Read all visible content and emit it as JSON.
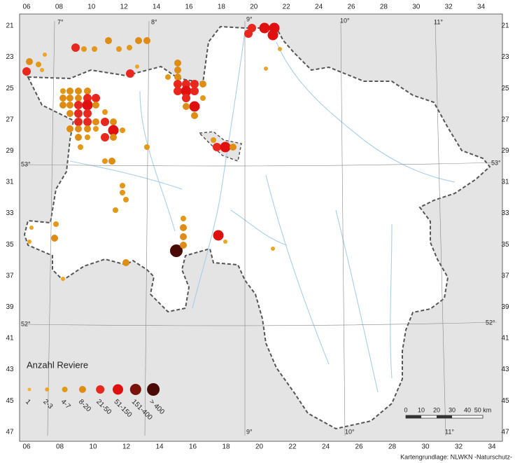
{
  "top_labels": [
    "06",
    "08",
    "10",
    "12",
    "14",
    "16",
    "18",
    "20",
    "22",
    "24",
    "26",
    "28",
    "30",
    "32",
    "34"
  ],
  "bottom_labels": [
    "06",
    "08",
    "10",
    "12",
    "14",
    "16",
    "18",
    "20",
    "22",
    "24",
    "26",
    "28",
    "30",
    "32",
    "34"
  ],
  "left_labels": [
    "21",
    "23",
    "25",
    "27",
    "29",
    "31",
    "33",
    "35",
    "37",
    "39",
    "41",
    "43",
    "45",
    "47"
  ],
  "right_labels": [
    "21",
    "23",
    "25",
    "27",
    "29",
    "31",
    "33",
    "35",
    "37",
    "39",
    "41",
    "43",
    "45",
    "47"
  ],
  "graticule": {
    "top": [
      "7°",
      "8°",
      "9°",
      "10°",
      "11°"
    ],
    "bottom": [
      "9°",
      "10°",
      "11°"
    ],
    "left": [
      "53°",
      "52°"
    ],
    "right": [
      "53°",
      "52°"
    ]
  },
  "legend": {
    "title": "Anzahl Reviere",
    "classes": [
      "1",
      "2-3",
      "4-7",
      "8-20",
      "21-50",
      "51-150",
      "151-400",
      "> 400"
    ]
  },
  "scale": {
    "labels": [
      "0",
      "10",
      "20",
      "30",
      "40",
      "50 km"
    ]
  },
  "credit": "Kartengrundlage: NLWKN -Naturschutz-"
}
